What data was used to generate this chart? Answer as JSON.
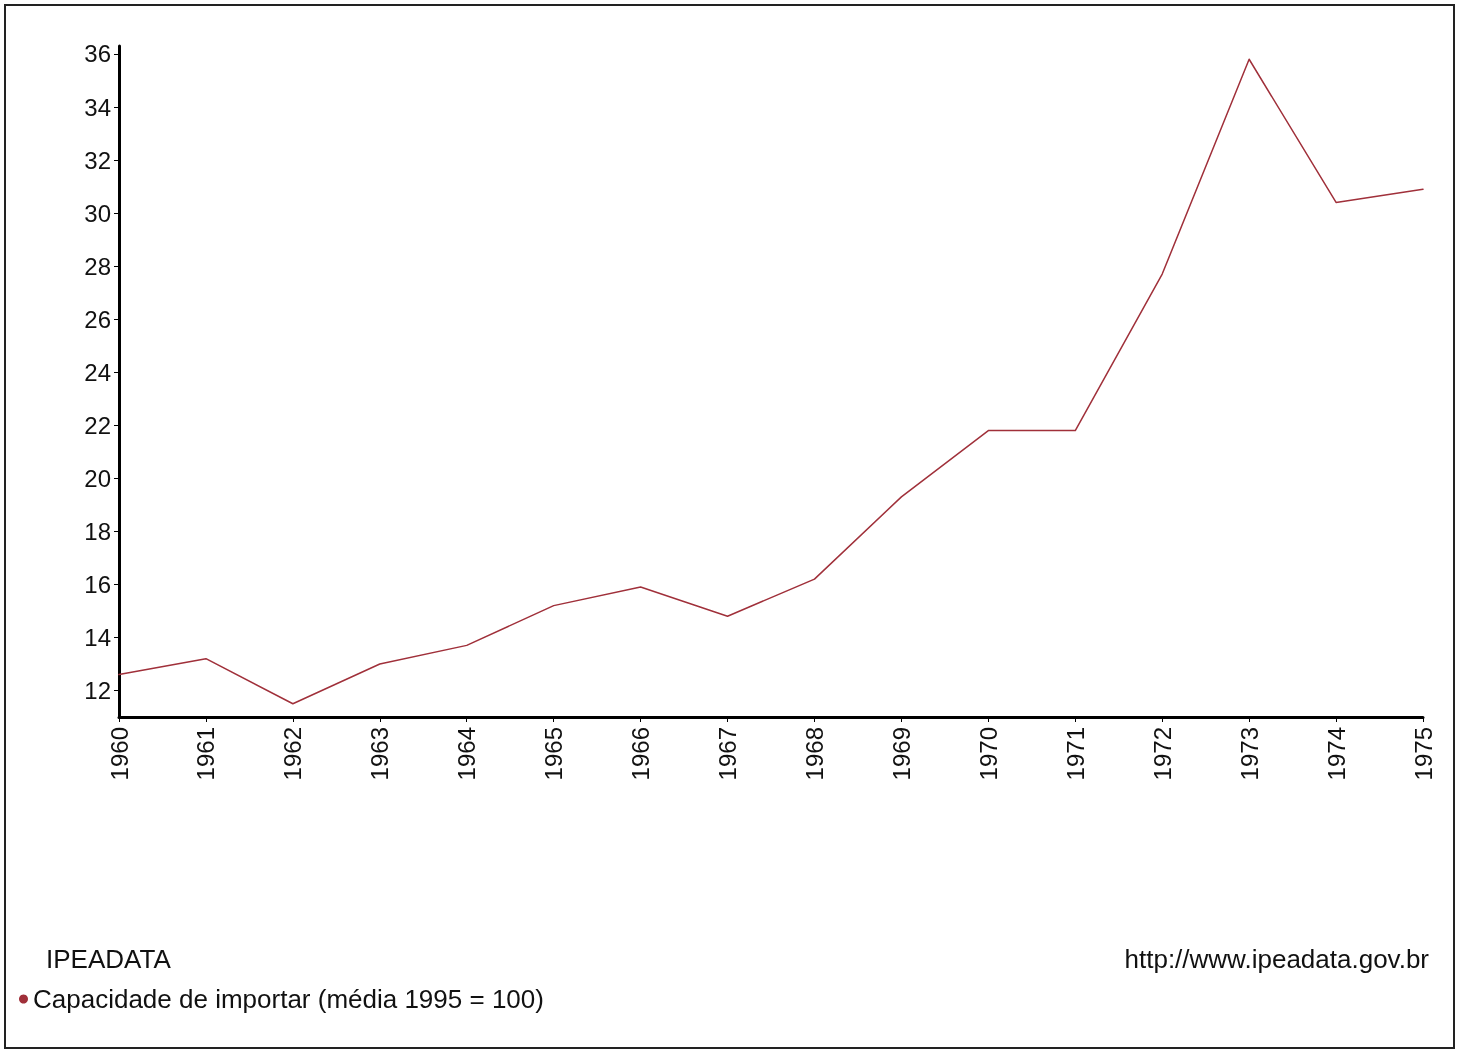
{
  "chart_data": {
    "type": "line",
    "categories": [
      "1960",
      "1961",
      "1962",
      "1963",
      "1964",
      "1965",
      "1966",
      "1967",
      "1968",
      "1969",
      "1970",
      "1971",
      "1972",
      "1973",
      "1974",
      "1975"
    ],
    "series": [
      {
        "name": "Capacidade de importar (média 1995 = 100)",
        "color": "#a0303a",
        "values": [
          12.6,
          13.2,
          11.5,
          13.0,
          13.7,
          15.2,
          15.9,
          14.8,
          16.2,
          19.3,
          21.8,
          21.8,
          27.7,
          35.8,
          30.4,
          30.9
        ]
      }
    ],
    "ylim": [
      11,
      36.3
    ],
    "yticks": [
      12,
      14,
      16,
      18,
      20,
      22,
      24,
      26,
      28,
      30,
      32,
      34,
      36
    ],
    "grid": false,
    "legend": "bottom left",
    "marker": "none",
    "annotations": [
      "IPEADATA",
      "http://www.ipeadata.gov.br"
    ]
  }
}
